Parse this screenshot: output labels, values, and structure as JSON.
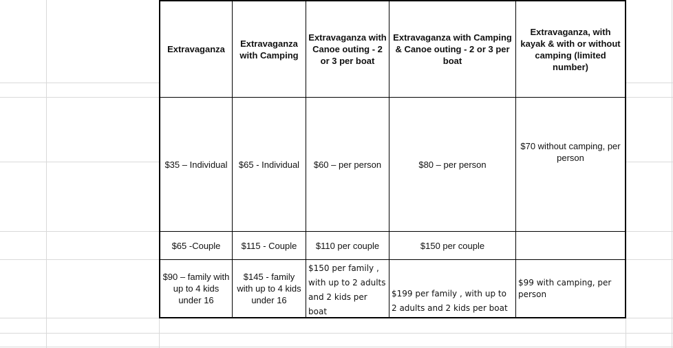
{
  "table": {
    "headers": [
      "Extravaganza",
      "Extravaganza with Camping",
      "Extravaganza with Canoe outing - 2 or 3 per boat",
      "Extravaganza with Camping & Canoe outing - 2 or 3 per boat",
      "Extravaganza, with kayak & with or without camping (limited number)"
    ],
    "rows": [
      [
        "$35 – Individual",
        "$65 - Individual",
        "$60 – per person",
        "$80 – per person",
        "$70 without camping, per person"
      ],
      [
        "$65 -Couple",
        "$115 - Couple",
        "$110 per couple",
        "$150 per couple",
        null
      ],
      [
        "$90 – family with up to 4 kids under 16",
        "$145 - family with up to 4 kids under 16",
        "$150 per family , with up to 2 adults and 2 kids per boat",
        "$199 per family , with up to 2 adults and 2 kids per boat",
        "$99 with camping, per person"
      ]
    ]
  }
}
